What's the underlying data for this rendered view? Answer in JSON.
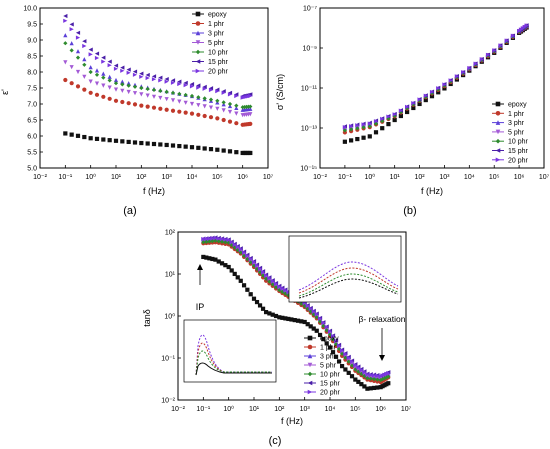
{
  "colors": {
    "epoxy": "#111111",
    "1phr": "#c0392b",
    "3phr": "#5b3fd8",
    "5phr": "#a35ad6",
    "10phr": "#2e8b2e",
    "15phr": "#4a1fa8",
    "20phr": "#7a36e0"
  },
  "chart_data": [
    {
      "id": "a",
      "type": "scatter",
      "panel_label": "(a)",
      "xlabel": "f (Hz)",
      "ylabel": "ε'",
      "xscale": "log",
      "xlim": [
        0.01,
        10000000
      ],
      "ylim": [
        5.0,
        10.0
      ],
      "x_ticks": [
        "10⁻²",
        "10⁻¹",
        "10⁰",
        "10¹",
        "10²",
        "10³",
        "10⁴",
        "10⁵",
        "10⁶",
        "10⁷"
      ],
      "y_ticks": [
        "5.0",
        "5.5",
        "6.0",
        "6.5",
        "7.0",
        "7.5",
        "8.0",
        "8.5",
        "9.0",
        "9.5",
        "10.0"
      ],
      "legend_position": "top-right",
      "series": [
        {
          "name": "epoxy",
          "key": "epoxy",
          "marker": "square",
          "x": [
            0.1,
            1,
            10,
            100,
            1000,
            10000,
            100000,
            1000000,
            2000000
          ],
          "values": [
            6.08,
            5.93,
            5.85,
            5.78,
            5.72,
            5.65,
            5.57,
            5.47,
            5.47
          ]
        },
        {
          "name": "1 phr",
          "key": "1phr",
          "marker": "circle",
          "x": [
            0.1,
            1,
            10,
            100,
            1000,
            10000,
            100000,
            1000000,
            2000000
          ],
          "values": [
            7.75,
            7.35,
            7.1,
            6.95,
            6.82,
            6.7,
            6.55,
            6.35,
            6.38
          ]
        },
        {
          "name": "3 phr",
          "key": "3phr",
          "marker": "triangle-up",
          "x": [
            0.1,
            1,
            10,
            100,
            1000,
            10000,
            100000,
            1000000,
            2000000
          ],
          "values": [
            9.15,
            8.15,
            7.75,
            7.55,
            7.4,
            7.25,
            7.05,
            6.82,
            6.85
          ]
        },
        {
          "name": "5 phr",
          "key": "5phr",
          "marker": "triangle-down",
          "x": [
            0.1,
            1,
            10,
            100,
            1000,
            10000,
            100000,
            1000000,
            2000000
          ],
          "values": [
            8.3,
            7.7,
            7.45,
            7.3,
            7.15,
            7.0,
            6.85,
            6.65,
            6.68
          ]
        },
        {
          "name": "10 phr",
          "key": "10phr",
          "marker": "diamond",
          "x": [
            0.1,
            1,
            10,
            100,
            1000,
            10000,
            100000,
            1000000,
            2000000
          ],
          "values": [
            8.9,
            8.0,
            7.65,
            7.5,
            7.38,
            7.25,
            7.1,
            6.9,
            6.92
          ]
        },
        {
          "name": "15 phr",
          "key": "15phr",
          "marker": "triangle-left",
          "x": [
            0.1,
            1,
            10,
            100,
            1000,
            10000,
            100000,
            1000000,
            2000000
          ],
          "values": [
            9.75,
            8.7,
            8.2,
            7.95,
            7.78,
            7.62,
            7.45,
            7.25,
            7.3
          ]
        },
        {
          "name": "20 phr",
          "key": "20phr",
          "marker": "triangle-right",
          "x": [
            0.1,
            1,
            10,
            100,
            1000,
            10000,
            100000,
            1000000,
            2000000
          ],
          "values": [
            9.6,
            8.55,
            8.1,
            7.85,
            7.7,
            7.55,
            7.4,
            7.2,
            7.25
          ]
        }
      ]
    },
    {
      "id": "b",
      "type": "scatter",
      "panel_label": "(b)",
      "xlabel": "f (Hz)",
      "ylabel": "σ' (S/cm)",
      "xscale": "log",
      "yscale": "log",
      "xlim": [
        0.01,
        10000000
      ],
      "ylim": [
        1e-15,
        1e-06
      ],
      "x_ticks": [
        "10⁻²",
        "10⁻¹",
        "10⁰",
        "10¹",
        "10²",
        "10³",
        "10⁴",
        "10⁵",
        "10⁶",
        "10⁷"
      ],
      "y_ticks": [
        "10⁻¹⁵",
        "10⁻¹³",
        "10⁻¹¹",
        "10⁻⁹",
        "10⁻⁷"
      ],
      "legend_position": "bottom-right",
      "series": [
        {
          "name": "epoxy",
          "key": "epoxy",
          "marker": "square",
          "x": [
            0.1,
            1,
            10,
            100,
            1000,
            10000,
            100000,
            1000000,
            2000000
          ],
          "values": [
            3e-14,
            6e-14,
            5e-13,
            4e-12,
            3e-11,
            3e-10,
            3e-09,
            4e-08,
            8e-08
          ]
        },
        {
          "name": "1 phr",
          "key": "1phr",
          "marker": "circle",
          "x": [
            0.1,
            1,
            10,
            100,
            1000,
            10000,
            100000,
            1000000,
            2000000
          ],
          "values": [
            1e-13,
            2e-13,
            8e-13,
            6e-12,
            4e-11,
            3.5e-10,
            3.5e-09,
            4.5e-08,
            9e-08
          ]
        },
        {
          "name": "3 phr",
          "key": "3phr",
          "marker": "triangle-up",
          "x": [
            0.1,
            1,
            10,
            100,
            1000,
            10000,
            100000,
            1000000,
            2000000
          ],
          "values": [
            1.8e-13,
            3e-13,
            1e-12,
            7e-12,
            5e-11,
            4e-10,
            4e-09,
            5e-08,
            1e-07
          ]
        },
        {
          "name": "5 phr",
          "key": "5phr",
          "marker": "triangle-down",
          "x": [
            0.1,
            1,
            10,
            100,
            1000,
            10000,
            100000,
            1000000,
            2000000
          ],
          "values": [
            1.5e-13,
            2.5e-13,
            9e-13,
            6.5e-12,
            4.5e-11,
            4e-10,
            4e-09,
            5e-08,
            1e-07
          ]
        },
        {
          "name": "10 phr",
          "key": "10phr",
          "marker": "diamond",
          "x": [
            0.1,
            1,
            10,
            100,
            1000,
            10000,
            100000,
            1000000,
            2000000
          ],
          "values": [
            1.3e-13,
            2.2e-13,
            8.5e-13,
            6.2e-12,
            4.3e-11,
            3.8e-10,
            3.8e-09,
            4.8e-08,
            9.5e-08
          ]
        },
        {
          "name": "15 phr",
          "key": "15phr",
          "marker": "triangle-left",
          "x": [
            0.1,
            1,
            10,
            100,
            1000,
            10000,
            100000,
            1000000,
            2000000
          ],
          "values": [
            2.2e-13,
            3.5e-13,
            1.1e-12,
            7.5e-12,
            5.2e-11,
            4.2e-10,
            4.2e-09,
            5.2e-08,
            1.05e-07
          ]
        },
        {
          "name": "20 phr",
          "key": "20phr",
          "marker": "triangle-right",
          "x": [
            0.1,
            1,
            10,
            100,
            1000,
            10000,
            100000,
            1000000,
            2000000
          ],
          "values": [
            2e-13,
            3.2e-13,
            1.05e-12,
            7.2e-12,
            5e-11,
            4.1e-10,
            4.1e-09,
            5.1e-08,
            1.02e-07
          ]
        }
      ]
    },
    {
      "id": "c",
      "type": "scatter",
      "panel_label": "(c)",
      "xlabel": "f (Hz)",
      "ylabel": "tanδ",
      "xscale": "log",
      "yscale": "log",
      "xlim": [
        0.01,
        10000000
      ],
      "ylim": [
        0.01,
        300
      ],
      "x_ticks": [
        "10⁻²",
        "10⁻¹",
        "10⁰",
        "10¹",
        "10²",
        "10³",
        "10⁴",
        "10⁵",
        "10⁶",
        "10⁷"
      ],
      "y_ticks": [
        "10⁻²",
        "10⁻¹",
        "10⁰",
        "10¹",
        "10²"
      ],
      "legend_position": "center-right",
      "annotations": [
        "IP",
        "β- relaxation"
      ],
      "series": [
        {
          "name": "epoxy",
          "key": "epoxy",
          "marker": "square",
          "x": [
            0.1,
            0.3,
            1,
            3,
            10,
            30,
            100,
            300,
            1000,
            3000,
            10000,
            30000,
            100000,
            300000,
            1000000,
            2000000
          ],
          "values": [
            65,
            55,
            35,
            15,
            5,
            2.2,
            1.6,
            1.4,
            1.2,
            0.7,
            0.25,
            0.08,
            0.035,
            0.02,
            0.022,
            0.028
          ]
        },
        {
          "name": "1 phr",
          "key": "1phr",
          "marker": "circle",
          "x": [
            0.1,
            0.3,
            1,
            3,
            10,
            30,
            100,
            300,
            1000,
            3000,
            10000,
            30000,
            100000,
            300000,
            1000000,
            2000000
          ],
          "values": [
            150,
            160,
            140,
            80,
            35,
            15,
            8,
            5,
            3,
            1.5,
            0.5,
            0.15,
            0.06,
            0.035,
            0.03,
            0.04
          ]
        },
        {
          "name": "3 phr",
          "key": "3phr",
          "marker": "triangle-up",
          "x": [
            0.1,
            0.3,
            1,
            3,
            10,
            30,
            100,
            300,
            1000,
            3000,
            10000,
            30000,
            100000,
            300000,
            1000000,
            2000000
          ],
          "values": [
            190,
            200,
            175,
            100,
            45,
            20,
            10,
            6.5,
            3.8,
            1.9,
            0.65,
            0.2,
            0.08,
            0.045,
            0.04,
            0.05
          ]
        },
        {
          "name": "5 phr",
          "key": "5phr",
          "marker": "triangle-down",
          "x": [
            0.1,
            0.3,
            1,
            3,
            10,
            30,
            100,
            300,
            1000,
            3000,
            10000,
            30000,
            100000,
            300000,
            1000000,
            2000000
          ],
          "values": [
            170,
            180,
            160,
            90,
            40,
            18,
            9,
            6,
            3.5,
            1.7,
            0.6,
            0.18,
            0.07,
            0.04,
            0.036,
            0.045
          ]
        },
        {
          "name": "10 phr",
          "key": "10phr",
          "marker": "diamond",
          "x": [
            0.1,
            0.3,
            1,
            3,
            10,
            30,
            100,
            300,
            1000,
            3000,
            10000,
            30000,
            100000,
            300000,
            1000000,
            2000000
          ],
          "values": [
            160,
            175,
            155,
            85,
            38,
            17,
            8.5,
            5.5,
            3.2,
            1.6,
            0.55,
            0.17,
            0.065,
            0.038,
            0.034,
            0.042
          ]
        },
        {
          "name": "15 phr",
          "key": "15phr",
          "marker": "triangle-left",
          "x": [
            0.1,
            0.3,
            1,
            3,
            10,
            30,
            100,
            300,
            1000,
            3000,
            10000,
            30000,
            100000,
            300000,
            1000000,
            2000000
          ],
          "values": [
            200,
            215,
            190,
            110,
            50,
            22,
            11,
            7,
            4,
            2,
            0.7,
            0.22,
            0.09,
            0.05,
            0.045,
            0.055
          ]
        },
        {
          "name": "20 phr",
          "key": "20phr",
          "marker": "triangle-right",
          "x": [
            0.1,
            0.3,
            1,
            3,
            10,
            30,
            100,
            300,
            1000,
            3000,
            10000,
            30000,
            100000,
            300000,
            1000000,
            2000000
          ],
          "values": [
            195,
            205,
            185,
            105,
            48,
            21,
            10.5,
            6.8,
            3.9,
            1.95,
            0.68,
            0.21,
            0.085,
            0.048,
            0.043,
            0.052
          ]
        }
      ]
    }
  ]
}
